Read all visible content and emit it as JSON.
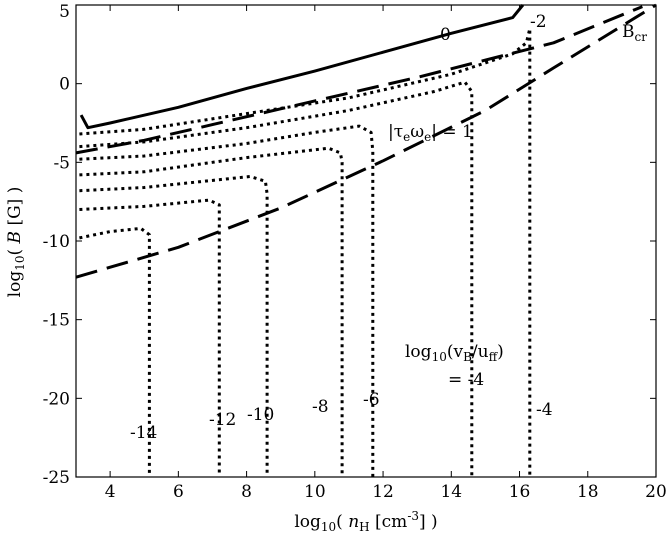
{
  "chart_data": {
    "type": "line",
    "xlabel_pre": "log",
    "xlabel_sub": "10",
    "xlabel_mid": "( ",
    "xlabel_var": "n",
    "xlabel_var_sub": "H",
    "xlabel_unit": " [cm",
    "xlabel_unit_sup": "-3",
    "xlabel_end": "] )",
    "ylabel_pre": "log",
    "ylabel_sub": "10",
    "ylabel_mid": "( ",
    "ylabel_var": "B",
    "ylabel_end": " [G] )",
    "xlim": [
      3,
      20
    ],
    "ylim": [
      -25,
      5
    ],
    "xticks": [
      4,
      6,
      8,
      10,
      12,
      14,
      16,
      18,
      20
    ],
    "yticks": [
      5,
      0,
      -5,
      -10,
      -15,
      -20,
      -25
    ],
    "annotations": {
      "zero": "0",
      "minus2": "-2",
      "bcr_main": "B",
      "bcr_sub": "cr",
      "tau_pre": "|τ",
      "tau_sub1": "e",
      "tau_mid": "ω",
      "tau_sub2": "e",
      "tau_post": "| = 1",
      "vb_pre": "log",
      "vb_sub": "10",
      "vb_open": "(v",
      "vb_sub2": "B",
      "vb_slash": "/u",
      "vb_sub3": "ff",
      "vb_close": ")",
      "vb_eq": "= -4",
      "m14": "-14",
      "m12": "-12",
      "m10": "-10",
      "m8": "-8",
      "m6": "-6",
      "m4": "-4"
    },
    "series": [
      {
        "style": "solid",
        "x": [
          3.15,
          3.35,
          4,
          6,
          8,
          10,
          12,
          14,
          15.8,
          16.1
        ],
        "y": [
          -2.0,
          -2.8,
          -2.5,
          -1.5,
          -0.3,
          0.8,
          2.0,
          3.2,
          4.2,
          5.0
        ]
      },
      {
        "style": "dashed",
        "x": [
          3,
          5,
          7,
          9,
          11,
          13,
          15,
          17,
          19.6
        ],
        "y": [
          -4.4,
          -3.6,
          -2.6,
          -1.6,
          -0.6,
          0.4,
          1.5,
          2.6,
          4.9
        ]
      },
      {
        "style": "dashed",
        "x": [
          3,
          6,
          9,
          12,
          15,
          17,
          20
        ],
        "y": [
          -12.3,
          -10.4,
          -7.9,
          -4.9,
          -1.7,
          1.0,
          5.0
        ]
      },
      {
        "style": "dotted",
        "x": [
          3.1,
          5,
          8,
          11,
          14,
          15.8,
          16.2,
          16.3,
          16.3
        ],
        "y": [
          -3.2,
          -2.9,
          -1.9,
          -0.9,
          0.6,
          1.9,
          2.6,
          3.5,
          -25
        ]
      },
      {
        "style": "dotted",
        "x": [
          3.1,
          5,
          8,
          11,
          13.5,
          14.4,
          14.6,
          14.6
        ],
        "y": [
          -4.0,
          -3.7,
          -2.8,
          -1.7,
          -0.5,
          0.1,
          -0.5,
          -25
        ]
      },
      {
        "style": "dotted",
        "x": [
          3.1,
          5,
          8,
          10,
          11.3,
          11.65,
          11.7,
          11.7
        ],
        "y": [
          -4.8,
          -4.6,
          -3.8,
          -3.1,
          -2.7,
          -3.1,
          -4.3,
          -25
        ]
      },
      {
        "style": "dotted",
        "x": [
          3.1,
          5,
          8,
          10.4,
          10.75,
          10.8,
          10.8
        ],
        "y": [
          -5.8,
          -5.6,
          -4.7,
          -4.1,
          -4.4,
          -5.0,
          -25
        ]
      },
      {
        "style": "dotted",
        "x": [
          3.1,
          5,
          8.1,
          8.55,
          8.6,
          8.6
        ],
        "y": [
          -6.8,
          -6.6,
          -5.9,
          -6.2,
          -7.0,
          -25
        ]
      },
      {
        "style": "dotted",
        "x": [
          3.1,
          5,
          6.9,
          7.2,
          7.2,
          7.2
        ],
        "y": [
          -8.0,
          -7.8,
          -7.4,
          -7.7,
          -8.3,
          -25
        ]
      },
      {
        "style": "dotted",
        "x": [
          3.1,
          4.0,
          4.9,
          5.15,
          5.15,
          5.15
        ],
        "y": [
          -9.8,
          -9.4,
          -9.2,
          -9.6,
          -10.3,
          -25
        ]
      }
    ]
  }
}
